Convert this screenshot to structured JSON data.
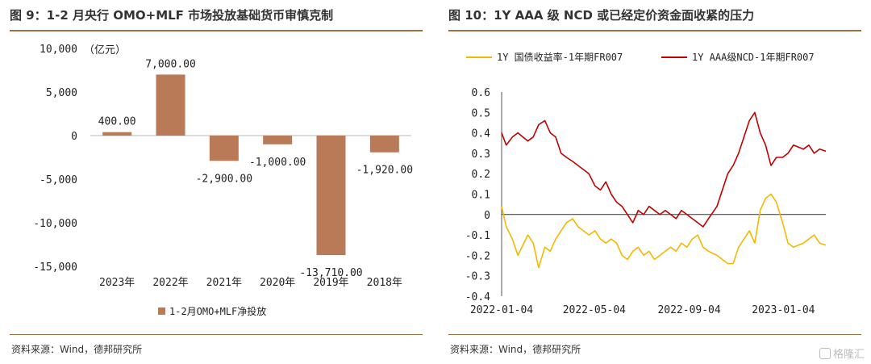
{
  "left_panel": {
    "title": "图 9：1-2 月央行 OMO+MLF 市场投放基础货币审慎克制",
    "source": "资料来源：Wind，德邦研究所"
  },
  "right_panel": {
    "title": "图 10：1Y AAA 级 NCD 或已经定价资金面收紧的压力",
    "source": "资料来源：Wind，德邦研究所"
  },
  "watermark": "格隆汇",
  "chart_data": [
    {
      "type": "bar",
      "unit_label": "（亿元）",
      "categories": [
        "2023年",
        "2022年",
        "2021年",
        "2020年",
        "2019年",
        "2018年"
      ],
      "series": [
        {
          "name": "1-2月OMO+MLF净投放",
          "values": [
            400,
            7000,
            -2900,
            -1000,
            -13710,
            -1920
          ],
          "color": "#b97a57"
        }
      ],
      "data_labels": [
        "400.00",
        "7,000.00",
        "-2,900.00",
        "-1,000.00",
        "-13,710.00",
        "-1,920.00"
      ],
      "yticks": [
        "10,000",
        "5,000",
        "0",
        "-5,000",
        "-10,000",
        "-15,000"
      ],
      "ylim": [
        -15000,
        10000
      ]
    },
    {
      "type": "line",
      "x_ticks": [
        "2022-01-04",
        "2022-05-04",
        "2022-09-04",
        "2023-01-04"
      ],
      "yticks": [
        "0.6",
        "0.5",
        "0.4",
        "0.3",
        "0.2",
        "0.1",
        "0",
        "-0.1",
        "-0.2",
        "-0.3",
        "-0.4"
      ],
      "ylim": [
        -0.4,
        0.6
      ],
      "x_range": [
        "2022-01-04",
        "2023-02-28"
      ],
      "series": [
        {
          "name": "1Y 国债收益率-1年期FR007",
          "color": "#f5b800",
          "dates": [
            "2022-01-04",
            "2022-01-10",
            "2022-01-18",
            "2022-01-25",
            "2022-02-07",
            "2022-02-14",
            "2022-02-21",
            "2022-03-01",
            "2022-03-08",
            "2022-03-15",
            "2022-03-22",
            "2022-03-29",
            "2022-04-06",
            "2022-04-13",
            "2022-04-20",
            "2022-04-27",
            "2022-05-05",
            "2022-05-12",
            "2022-05-19",
            "2022-05-26",
            "2022-06-02",
            "2022-06-09",
            "2022-06-16",
            "2022-06-23",
            "2022-06-30",
            "2022-07-07",
            "2022-07-14",
            "2022-07-21",
            "2022-07-28",
            "2022-08-04",
            "2022-08-11",
            "2022-08-18",
            "2022-08-25",
            "2022-09-01",
            "2022-09-08",
            "2022-09-15",
            "2022-09-22",
            "2022-09-29",
            "2022-10-10",
            "2022-10-17",
            "2022-10-24",
            "2022-10-31",
            "2022-11-07",
            "2022-11-14",
            "2022-11-21",
            "2022-11-28",
            "2022-12-05",
            "2022-12-12",
            "2022-12-19",
            "2022-12-26",
            "2023-01-03",
            "2023-01-10",
            "2023-01-17",
            "2023-01-30",
            "2023-02-06",
            "2023-02-13",
            "2023-02-20",
            "2023-02-28"
          ],
          "values": [
            0.04,
            -0.06,
            -0.12,
            -0.2,
            -0.1,
            -0.14,
            -0.26,
            -0.16,
            -0.18,
            -0.12,
            -0.08,
            -0.04,
            -0.02,
            -0.06,
            -0.08,
            -0.1,
            -0.08,
            -0.12,
            -0.14,
            -0.12,
            -0.14,
            -0.2,
            -0.22,
            -0.18,
            -0.16,
            -0.2,
            -0.18,
            -0.22,
            -0.2,
            -0.18,
            -0.16,
            -0.18,
            -0.14,
            -0.16,
            -0.12,
            -0.1,
            -0.16,
            -0.18,
            -0.2,
            -0.22,
            -0.24,
            -0.24,
            -0.16,
            -0.12,
            -0.08,
            -0.14,
            0.02,
            0.08,
            0.1,
            0.06,
            -0.04,
            -0.14,
            -0.16,
            -0.14,
            -0.12,
            -0.1,
            -0.14,
            -0.15
          ]
        },
        {
          "name": "1Y AAA级NCD-1年期FR007",
          "color": "#c00000",
          "dates": [
            "2022-01-04",
            "2022-01-10",
            "2022-01-18",
            "2022-01-25",
            "2022-02-07",
            "2022-02-14",
            "2022-02-21",
            "2022-03-01",
            "2022-03-08",
            "2022-03-15",
            "2022-03-22",
            "2022-03-29",
            "2022-04-06",
            "2022-04-13",
            "2022-04-20",
            "2022-04-27",
            "2022-05-05",
            "2022-05-12",
            "2022-05-19",
            "2022-05-26",
            "2022-06-02",
            "2022-06-09",
            "2022-06-16",
            "2022-06-23",
            "2022-06-30",
            "2022-07-07",
            "2022-07-14",
            "2022-07-21",
            "2022-07-28",
            "2022-08-04",
            "2022-08-11",
            "2022-08-18",
            "2022-08-25",
            "2022-09-01",
            "2022-09-08",
            "2022-09-15",
            "2022-09-22",
            "2022-09-29",
            "2022-10-10",
            "2022-10-17",
            "2022-10-24",
            "2022-10-31",
            "2022-11-07",
            "2022-11-14",
            "2022-11-21",
            "2022-11-28",
            "2022-12-05",
            "2022-12-12",
            "2022-12-19",
            "2022-12-26",
            "2023-01-03",
            "2023-01-10",
            "2023-01-17",
            "2023-01-30",
            "2023-02-06",
            "2023-02-13",
            "2023-02-20",
            "2023-02-28"
          ],
          "values": [
            0.4,
            0.34,
            0.38,
            0.4,
            0.36,
            0.38,
            0.44,
            0.46,
            0.4,
            0.38,
            0.3,
            0.28,
            0.26,
            0.24,
            0.22,
            0.2,
            0.14,
            0.12,
            0.16,
            0.1,
            0.06,
            0.04,
            0.0,
            -0.04,
            0.02,
            0.0,
            0.04,
            0.02,
            0.0,
            0.02,
            0.0,
            -0.02,
            0.02,
            0.0,
            -0.02,
            -0.04,
            -0.06,
            -0.02,
            0.04,
            0.12,
            0.2,
            0.24,
            0.3,
            0.38,
            0.46,
            0.5,
            0.4,
            0.34,
            0.24,
            0.28,
            0.28,
            0.3,
            0.34,
            0.32,
            0.34,
            0.3,
            0.32,
            0.31
          ]
        }
      ]
    }
  ]
}
